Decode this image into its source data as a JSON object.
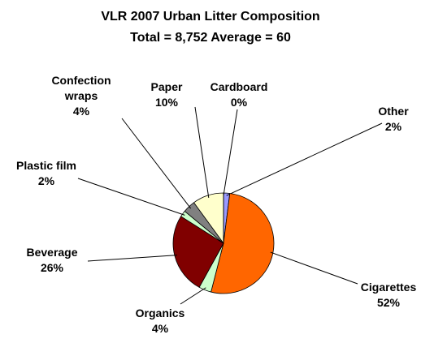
{
  "chart_data": {
    "type": "pie",
    "title": "VLR 2007 Urban Litter Composition",
    "subtitle": "Total = 8,752 Average = 60",
    "categories": [
      "Other",
      "Cigarettes",
      "Organics",
      "Beverage",
      "Plastic film",
      "Confection wraps",
      "Paper",
      "Cardboard"
    ],
    "values": [
      2,
      52,
      4,
      26,
      2,
      4,
      10,
      0
    ],
    "value_labels": [
      "2%",
      "52%",
      "4%",
      "26%",
      "2%",
      "4%",
      "10%",
      "0%"
    ],
    "colors": [
      "#9999ff",
      "#ff6600",
      "#ccffcc",
      "#800000",
      "#ccffcc",
      "#808080",
      "#ffffcc",
      "#cc99ff"
    ]
  }
}
